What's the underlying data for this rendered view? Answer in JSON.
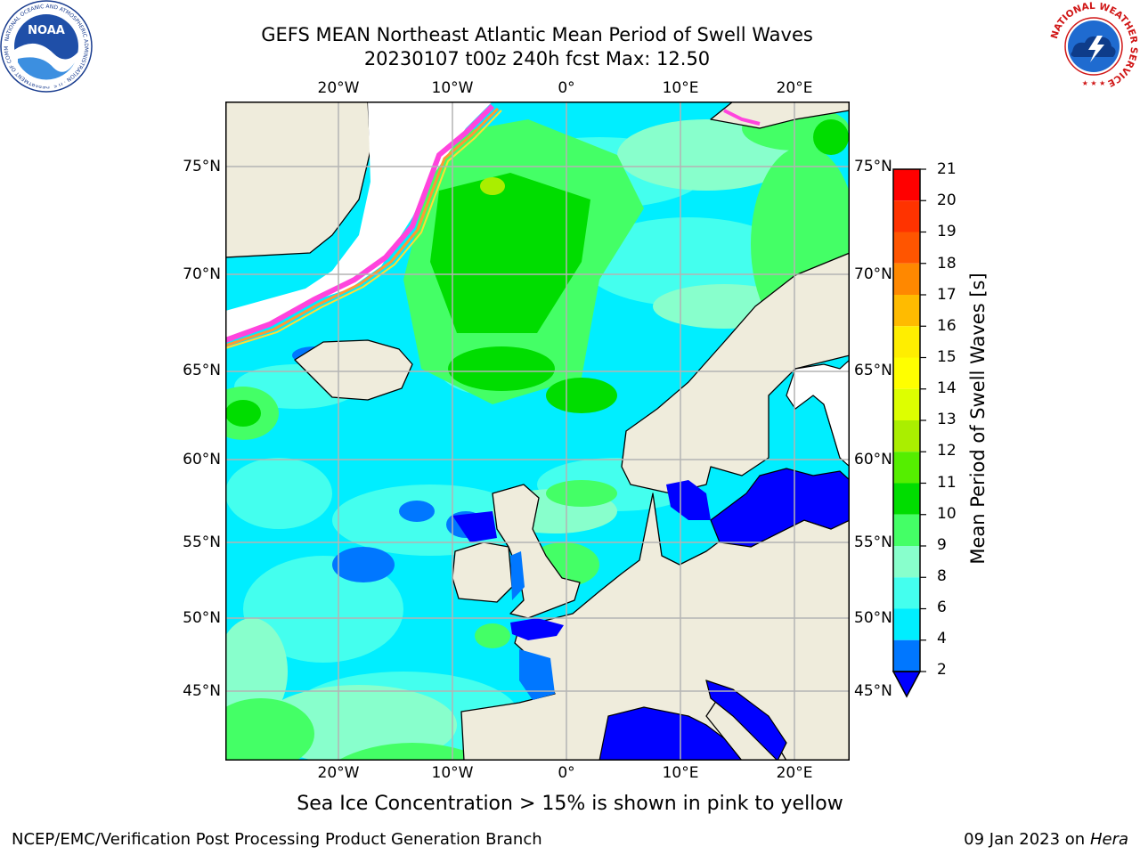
{
  "header": {
    "title_line1": "GEFS MEAN Northeast Atlantic Mean Period of Swell Waves",
    "title_line2": "20230107 t00z 240h fcst   Max: 12.50"
  },
  "map": {
    "lon_ticks": [
      "20°W",
      "10°W",
      "0°",
      "10°E",
      "20°E"
    ],
    "lat_ticks_left": [
      "75°N",
      "70°N",
      "65°N",
      "60°N",
      "55°N",
      "50°N",
      "45°N"
    ],
    "lat_ticks_right": [
      "75°N",
      "70°N",
      "65°N",
      "60°N",
      "55°N",
      "50°N",
      "45°N"
    ],
    "colors": {
      "land": "#efecdc",
      "grid": "#b4b4b4",
      "coast": "#000000",
      "ice_edge": [
        "#ff44dd",
        "#ff9933",
        "#ffdd33"
      ]
    }
  },
  "colorbar": {
    "title": "Mean Period of Swell Waves [s]",
    "ticks": [
      "21",
      "20",
      "19",
      "18",
      "17",
      "16",
      "15",
      "14",
      "13",
      "12",
      "11",
      "10",
      "9",
      "8",
      "6",
      "4",
      "2"
    ],
    "bands": [
      {
        "from": 20,
        "to": 21,
        "color": "#ff0000"
      },
      {
        "from": 19,
        "to": 20,
        "color": "#ff3300"
      },
      {
        "from": 18,
        "to": 19,
        "color": "#ff5500"
      },
      {
        "from": 17,
        "to": 18,
        "color": "#ff8800"
      },
      {
        "from": 16,
        "to": 17,
        "color": "#ffbb00"
      },
      {
        "from": 15,
        "to": 16,
        "color": "#ffee00"
      },
      {
        "from": 14,
        "to": 15,
        "color": "#ffff00"
      },
      {
        "from": 13,
        "to": 14,
        "color": "#ddff00"
      },
      {
        "from": 12,
        "to": 13,
        "color": "#aaee00"
      },
      {
        "from": 11,
        "to": 12,
        "color": "#55ee00"
      },
      {
        "from": 10,
        "to": 11,
        "color": "#00dd00"
      },
      {
        "from": 9,
        "to": 10,
        "color": "#44ff66"
      },
      {
        "from": 8,
        "to": 9,
        "color": "#88ffcc"
      },
      {
        "from": 6,
        "to": 8,
        "color": "#44ffee"
      },
      {
        "from": 4,
        "to": 6,
        "color": "#00eeff"
      },
      {
        "from": 2,
        "to": 4,
        "color": "#0077ff"
      }
    ],
    "under_color": "#0000ff"
  },
  "note": "Sea Ice Concentration > 15% is shown in pink to yellow",
  "footer": {
    "left": "NCEP/EMC/Verification Post Processing Product Generation Branch",
    "right_date": "09 Jan 2023 on ",
    "right_host": "Hera"
  },
  "logos": {
    "noaa_text": "NOAA",
    "noaa_ring_text": "NATIONAL OCEANIC AND ATMOSPHERIC ADMINISTRATION · U.S. DEPARTMENT OF COMMERCE",
    "nws_ring_text": "NATIONAL WEATHER SERVICE"
  }
}
